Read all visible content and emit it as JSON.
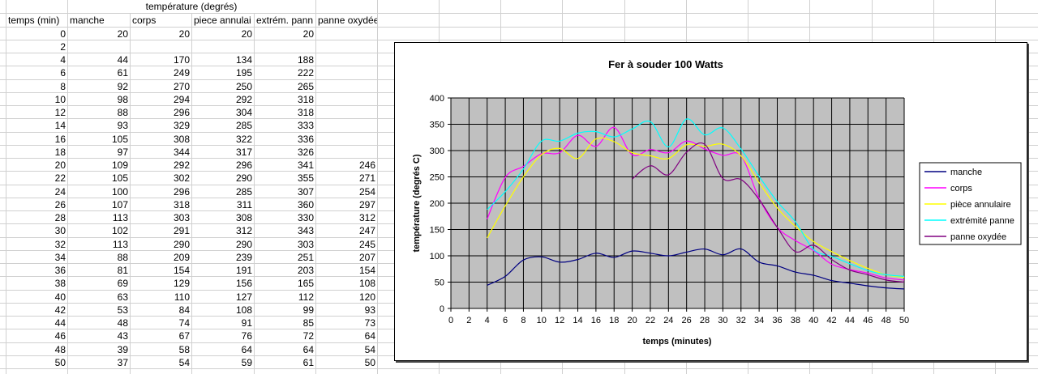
{
  "sheet": {
    "group_header": "température (degrés)",
    "headers": [
      "temps (min)",
      "manche",
      "corps",
      "piece annulai",
      "extrém. pann",
      "panne oxydée"
    ],
    "rows": [
      [
        "0",
        "20",
        "20",
        "20",
        "20",
        ""
      ],
      [
        "2",
        "",
        "",
        "",
        "",
        ""
      ],
      [
        "4",
        "44",
        "170",
        "134",
        "188",
        ""
      ],
      [
        "6",
        "61",
        "249",
        "195",
        "222",
        ""
      ],
      [
        "8",
        "92",
        "270",
        "250",
        "265",
        ""
      ],
      [
        "10",
        "98",
        "294",
        "292",
        "318",
        ""
      ],
      [
        "12",
        "88",
        "296",
        "304",
        "318",
        ""
      ],
      [
        "14",
        "93",
        "329",
        "285",
        "333",
        ""
      ],
      [
        "16",
        "105",
        "308",
        "322",
        "336",
        ""
      ],
      [
        "18",
        "97",
        "344",
        "317",
        "326",
        ""
      ],
      [
        "20",
        "109",
        "292",
        "296",
        "341",
        "246"
      ],
      [
        "22",
        "105",
        "302",
        "290",
        "355",
        "271"
      ],
      [
        "24",
        "100",
        "296",
        "285",
        "307",
        "254"
      ],
      [
        "26",
        "107",
        "318",
        "311",
        "360",
        "297"
      ],
      [
        "28",
        "113",
        "303",
        "308",
        "330",
        "312"
      ],
      [
        "30",
        "102",
        "291",
        "312",
        "343",
        "247"
      ],
      [
        "32",
        "113",
        "290",
        "290",
        "303",
        "245"
      ],
      [
        "34",
        "88",
        "209",
        "239",
        "251",
        "207"
      ],
      [
        "36",
        "81",
        "154",
        "191",
        "203",
        "154"
      ],
      [
        "38",
        "69",
        "129",
        "156",
        "165",
        "108"
      ],
      [
        "40",
        "63",
        "110",
        "127",
        "112",
        "120"
      ],
      [
        "42",
        "53",
        "84",
        "108",
        "99",
        "93"
      ],
      [
        "44",
        "48",
        "74",
        "91",
        "85",
        "73"
      ],
      [
        "46",
        "43",
        "67",
        "76",
        "72",
        "64"
      ],
      [
        "48",
        "39",
        "58",
        "64",
        "64",
        "54"
      ],
      [
        "50",
        "37",
        "54",
        "59",
        "61",
        "50"
      ]
    ]
  },
  "chart_data": {
    "type": "line",
    "title": "Fer à souder 100 Watts",
    "xlabel": "temps (minutes)",
    "ylabel": "température (degrés C)",
    "xlim": [
      0,
      50
    ],
    "ylim": [
      0,
      400
    ],
    "xticks": [
      0,
      2,
      4,
      6,
      8,
      10,
      12,
      14,
      16,
      18,
      20,
      22,
      24,
      26,
      28,
      30,
      32,
      34,
      36,
      38,
      40,
      42,
      44,
      46,
      48,
      50
    ],
    "yticks": [
      0,
      50,
      100,
      150,
      200,
      250,
      300,
      350,
      400
    ],
    "grid": true,
    "smoothed": true,
    "legend_position": "right",
    "x": [
      4,
      6,
      8,
      10,
      12,
      14,
      16,
      18,
      20,
      22,
      24,
      26,
      28,
      30,
      32,
      34,
      36,
      38,
      40,
      42,
      44,
      46,
      48,
      50
    ],
    "series": [
      {
        "name": "manche",
        "color": "#000080",
        "values": [
          44,
          61,
          92,
          98,
          88,
          93,
          105,
          97,
          109,
          105,
          100,
          107,
          113,
          102,
          113,
          88,
          81,
          69,
          63,
          53,
          48,
          43,
          39,
          37
        ]
      },
      {
        "name": "corps",
        "color": "#ff00ff",
        "values": [
          170,
          249,
          270,
          294,
          296,
          329,
          308,
          344,
          292,
          302,
          296,
          318,
          303,
          291,
          290,
          209,
          154,
          129,
          110,
          84,
          74,
          67,
          58,
          54
        ]
      },
      {
        "name": "pièce annulaire",
        "color": "#ffff00",
        "values": [
          134,
          195,
          250,
          292,
          304,
          285,
          322,
          317,
          296,
          290,
          285,
          311,
          308,
          312,
          290,
          239,
          191,
          156,
          127,
          108,
          91,
          76,
          64,
          59
        ]
      },
      {
        "name": "extrémité panne",
        "color": "#00ffff",
        "values": [
          188,
          222,
          265,
          318,
          318,
          333,
          336,
          326,
          341,
          355,
          307,
          360,
          330,
          343,
          303,
          251,
          203,
          165,
          112,
          99,
          85,
          72,
          64,
          61
        ]
      },
      {
        "name": "panne oxydée",
        "color": "#800080",
        "values": [
          null,
          null,
          null,
          null,
          null,
          null,
          null,
          null,
          246,
          271,
          254,
          297,
          312,
          247,
          245,
          207,
          154,
          108,
          120,
          93,
          73,
          64,
          54,
          50
        ]
      }
    ]
  }
}
